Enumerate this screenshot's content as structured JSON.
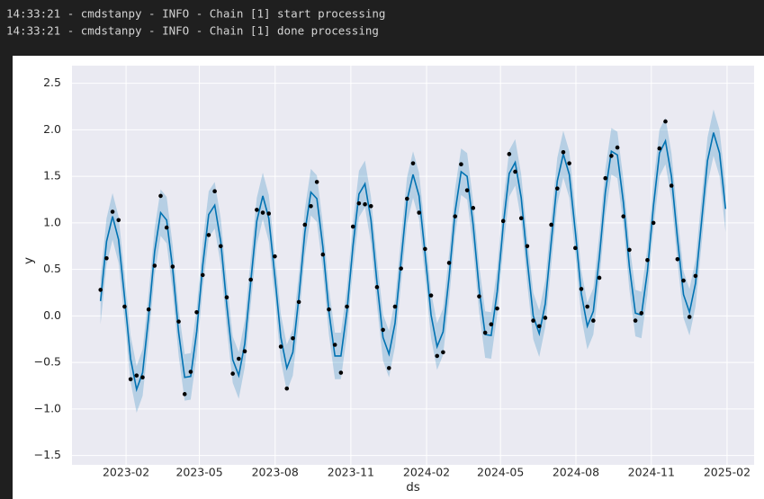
{
  "log_lines": [
    "14:33:21 - cmdstanpy - INFO - Chain [1] start processing",
    "14:33:21 - cmdstanpy - INFO - Chain [1] done processing"
  ],
  "chart_data": {
    "type": "line",
    "xlabel": "ds",
    "ylabel": "y",
    "grid": true,
    "xlim": [
      2022.905,
      2025.175
    ],
    "ylim": [
      -1.6,
      2.69
    ],
    "xticks": [
      {
        "value": 2023.085,
        "label": "2023-02"
      },
      {
        "value": 2023.329,
        "label": "2023-05"
      },
      {
        "value": 2023.581,
        "label": "2023-08"
      },
      {
        "value": 2023.833,
        "label": "2023-11"
      },
      {
        "value": 2024.085,
        "label": "2024-02"
      },
      {
        "value": 2024.331,
        "label": "2024-05"
      },
      {
        "value": 2024.582,
        "label": "2024-08"
      },
      {
        "value": 2024.833,
        "label": "2024-11"
      },
      {
        "value": 2025.085,
        "label": "2025-02"
      }
    ],
    "yticks": [
      {
        "value": -1.5,
        "label": "−1.5"
      },
      {
        "value": -1,
        "label": "−1.0"
      },
      {
        "value": -0.5,
        "label": "−0.5"
      },
      {
        "value": 0,
        "label": "0.0"
      },
      0.5,
      {
        "value": 1,
        "label": "1.0"
      },
      1.5,
      {
        "value": 2,
        "label": "2.0"
      },
      2.5
    ],
    "x": [
      2023.0,
      2023.02,
      2023.04,
      2023.06,
      2023.08,
      2023.1,
      2023.12,
      2023.14,
      2023.16,
      2023.18,
      2023.2,
      2023.22,
      2023.24,
      2023.26,
      2023.28,
      2023.3,
      2023.32,
      2023.34,
      2023.36,
      2023.38,
      2023.4,
      2023.42,
      2023.44,
      2023.46,
      2023.48,
      2023.5,
      2023.52,
      2023.54,
      2023.56,
      2023.58,
      2023.6,
      2023.62,
      2023.64,
      2023.66,
      2023.68,
      2023.7,
      2023.72,
      2023.74,
      2023.76,
      2023.78,
      2023.8,
      2023.82,
      2023.84,
      2023.86,
      2023.88,
      2023.9,
      2023.92,
      2023.94,
      2023.96,
      2023.98,
      2024.0,
      2024.02,
      2024.04,
      2024.06,
      2024.08,
      2024.1,
      2024.12,
      2024.14,
      2024.16,
      2024.18,
      2024.2,
      2024.22,
      2024.24,
      2024.26,
      2024.28,
      2024.3,
      2024.32,
      2024.34,
      2024.36,
      2024.38,
      2024.4,
      2024.42,
      2024.44,
      2024.46,
      2024.48,
      2024.5,
      2024.52,
      2024.54,
      2024.56,
      2024.58,
      2024.6,
      2024.62,
      2024.64,
      2024.66,
      2024.68,
      2024.7,
      2024.72,
      2024.74,
      2024.76,
      2024.78,
      2024.8,
      2024.82,
      2024.84,
      2024.86,
      2024.88,
      2024.9,
      2024.92,
      2024.94,
      2024.96,
      2024.98,
      2025.0,
      2025.02,
      2025.04,
      2025.06,
      2025.08
    ],
    "series": [
      {
        "type": "band",
        "color": "#0072b2",
        "lower": [
          -0.09,
          0.55,
          0.82,
          0.57,
          -0.05,
          -0.71,
          -1.04,
          -0.86,
          -0.26,
          0.44,
          0.86,
          0.78,
          0.26,
          -0.43,
          -0.91,
          -0.9,
          -0.42,
          0.29,
          0.84,
          0.94,
          0.55,
          -0.13,
          -0.72,
          -0.89,
          -0.55,
          0.12,
          0.77,
          1.04,
          0.8,
          0.18,
          -0.48,
          -0.81,
          -0.64,
          -0.05,
          0.65,
          1.08,
          1.01,
          0.49,
          -0.2,
          -0.68,
          -0.68,
          -0.2,
          0.5,
          1.06,
          1.17,
          0.78,
          0.11,
          -0.48,
          -0.66,
          -0.33,
          0.34,
          0.99,
          1.27,
          1.04,
          0.42,
          -0.24,
          -0.58,
          -0.42,
          0.17,
          0.87,
          1.3,
          1.25,
          0.73,
          0.04,
          -0.45,
          -0.46,
          0.01,
          0.72,
          1.28,
          1.4,
          1.02,
          0.35,
          -0.25,
          -0.44,
          -0.12,
          0.55,
          1.2,
          1.49,
          1.27,
          0.66,
          -0.01,
          -0.36,
          -0.2,
          0.38,
          1.08,
          1.52,
          1.48,
          0.97,
          0.28,
          -0.22,
          -0.24,
          0.23,
          0.93,
          1.5,
          1.63,
          1.25,
          0.58,
          -0.02,
          -0.21,
          0.1,
          0.76,
          1.42,
          1.72,
          1.5,
          0.9
        ],
        "upper": [
          0.41,
          1.05,
          1.32,
          1.07,
          0.45,
          -0.21,
          -0.54,
          -0.36,
          0.24,
          0.94,
          1.36,
          1.28,
          0.76,
          0.07,
          -0.41,
          -0.4,
          0.08,
          0.79,
          1.34,
          1.44,
          1.05,
          0.37,
          -0.22,
          -0.39,
          -0.05,
          0.62,
          1.27,
          1.54,
          1.3,
          0.68,
          0.02,
          -0.31,
          -0.14,
          0.45,
          1.15,
          1.58,
          1.51,
          0.99,
          0.3,
          -0.18,
          -0.18,
          0.3,
          1.0,
          1.56,
          1.67,
          1.28,
          0.61,
          0.02,
          -0.16,
          0.17,
          0.84,
          1.49,
          1.77,
          1.54,
          0.92,
          0.26,
          -0.08,
          0.08,
          0.67,
          1.37,
          1.8,
          1.75,
          1.23,
          0.54,
          0.05,
          0.04,
          0.51,
          1.22,
          1.78,
          1.9,
          1.52,
          0.85,
          0.25,
          0.06,
          0.38,
          1.05,
          1.7,
          1.99,
          1.77,
          1.16,
          0.49,
          0.14,
          0.3,
          0.88,
          1.58,
          2.02,
          1.98,
          1.47,
          0.78,
          0.28,
          0.26,
          0.73,
          1.43,
          2.0,
          2.13,
          1.75,
          1.08,
          0.48,
          0.29,
          0.6,
          1.26,
          1.92,
          2.22,
          2.0,
          1.4
        ]
      },
      {
        "type": "line",
        "color": "#0072b2",
        "values": [
          0.16,
          0.8,
          1.07,
          0.82,
          0.2,
          -0.46,
          -0.79,
          -0.61,
          -0.01,
          0.69,
          1.11,
          1.03,
          0.51,
          -0.18,
          -0.66,
          -0.65,
          -0.17,
          0.54,
          1.09,
          1.19,
          0.8,
          0.12,
          -0.47,
          -0.64,
          -0.3,
          0.37,
          1.02,
          1.29,
          1.05,
          0.43,
          -0.23,
          -0.56,
          -0.39,
          0.2,
          0.9,
          1.33,
          1.26,
          0.74,
          0.05,
          -0.43,
          -0.43,
          0.05,
          0.75,
          1.31,
          1.42,
          1.03,
          0.36,
          -0.23,
          -0.41,
          -0.08,
          0.59,
          1.24,
          1.52,
          1.29,
          0.67,
          0.01,
          -0.33,
          -0.17,
          0.42,
          1.12,
          1.55,
          1.5,
          0.98,
          0.29,
          -0.2,
          -0.21,
          0.26,
          0.97,
          1.53,
          1.65,
          1.27,
          0.6,
          0.0,
          -0.19,
          0.13,
          0.8,
          1.45,
          1.74,
          1.52,
          0.91,
          0.24,
          -0.11,
          0.05,
          0.63,
          1.33,
          1.77,
          1.73,
          1.22,
          0.53,
          0.03,
          0.01,
          0.48,
          1.18,
          1.75,
          1.88,
          1.5,
          0.83,
          0.23,
          0.04,
          0.35,
          1.01,
          1.67,
          1.97,
          1.75,
          1.15
        ]
      },
      {
        "type": "scatter",
        "color": "#000000",
        "values": [
          0.28,
          0.62,
          1.12,
          1.03,
          0.1,
          -0.68,
          -0.64,
          -0.66,
          0.07,
          0.54,
          1.29,
          0.95,
          0.53,
          -0.06,
          -0.84,
          -0.6,
          0.04,
          0.44,
          0.87,
          1.34,
          0.75,
          0.2,
          -0.62,
          -0.46,
          -0.38,
          0.39,
          1.14,
          1.11,
          1.1,
          0.64,
          -0.33,
          -0.78,
          -0.24,
          0.15,
          0.98,
          1.18,
          1.44,
          0.66,
          0.07,
          -0.31,
          -0.61,
          0.1,
          0.96,
          1.21,
          1.2,
          1.18,
          0.31,
          -0.15,
          -0.56,
          0.1,
          0.51,
          1.26,
          1.64,
          1.11,
          0.72,
          0.22,
          -0.43,
          -0.39,
          0.57,
          1.07,
          1.63,
          1.35,
          1.16,
          0.21,
          -0.18,
          -0.09,
          0.08,
          1.02,
          1.74,
          1.55,
          1.05,
          0.75,
          -0.05,
          -0.11,
          -0.02,
          0.98,
          1.37,
          1.76,
          1.64,
          0.73,
          0.29,
          0.1,
          -0.05,
          0.41,
          1.48,
          1.72,
          1.81,
          1.07,
          0.71,
          -0.05,
          0.03,
          0.6,
          1.0,
          1.8,
          2.09,
          1.4,
          0.61,
          0.38,
          -0.01,
          0.43,
          null,
          null,
          null,
          null,
          null
        ]
      }
    ]
  }
}
